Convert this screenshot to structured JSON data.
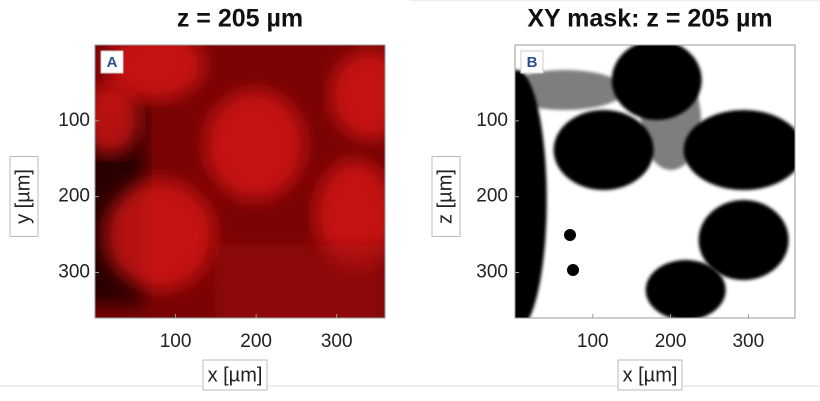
{
  "chart_data": [
    {
      "type": "image",
      "colormap": "red",
      "panel_label": "A",
      "title": "z = 205 µm",
      "x_label": "x [µm]",
      "y_label": "y [µm]",
      "xlim": [
        0,
        360
      ],
      "ylim": [
        0,
        360
      ],
      "y_reversed": true,
      "xticks": [
        100,
        200,
        300
      ],
      "yticks": [
        100,
        200,
        300
      ]
    },
    {
      "type": "image",
      "colormap": "binary",
      "panel_label": "B",
      "title": "XY mask: z = 205 µm",
      "x_label": "x [µm]",
      "y_label": "z [µm]",
      "xlim": [
        0,
        360
      ],
      "ylim": [
        0,
        360
      ],
      "y_reversed": true,
      "xticks": [
        100,
        200,
        300
      ],
      "yticks": [
        100,
        200,
        300
      ]
    }
  ]
}
